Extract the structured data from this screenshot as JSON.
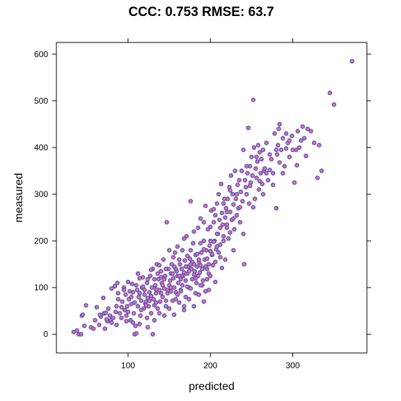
{
  "chart_data": {
    "type": "scatter",
    "title": "CCC: 0.753  RMSE: 63.7",
    "xlabel": "predicted",
    "ylabel": "measured",
    "xlim": [
      13,
      390
    ],
    "ylim": [
      -40,
      625
    ],
    "xticks": [
      100,
      200,
      300
    ],
    "yticks": [
      0,
      100,
      200,
      300,
      400,
      500,
      600
    ],
    "x_tick_labels": [
      "100",
      "200",
      "300"
    ],
    "y_tick_labels": [
      "0",
      "100",
      "200",
      "300",
      "400",
      "500",
      "600"
    ],
    "grid": false,
    "point_fill_color": "#ee6ca8",
    "point_edge_color": "#4a56b8",
    "points": [
      [
        34,
        5
      ],
      [
        38,
        8
      ],
      [
        40,
        0
      ],
      [
        43,
        0
      ],
      [
        44,
        40
      ],
      [
        45,
        42
      ],
      [
        47,
        18
      ],
      [
        49,
        62
      ],
      [
        55,
        15
      ],
      [
        58,
        12
      ],
      [
        60,
        30
      ],
      [
        62,
        58
      ],
      [
        65,
        20
      ],
      [
        67,
        38
      ],
      [
        70,
        78
      ],
      [
        71,
        45
      ],
      [
        72,
        12
      ],
      [
        73,
        46
      ],
      [
        75,
        28
      ],
      [
        76,
        55
      ],
      [
        78,
        40
      ],
      [
        79,
        30
      ],
      [
        80,
        98
      ],
      [
        82,
        35
      ],
      [
        84,
        103
      ],
      [
        85,
        48
      ],
      [
        86,
        60
      ],
      [
        87,
        110
      ],
      [
        88,
        88
      ],
      [
        90,
        45
      ],
      [
        92,
        58
      ],
      [
        93,
        70
      ],
      [
        95,
        100
      ],
      [
        97,
        85
      ],
      [
        98,
        40
      ],
      [
        99,
        60
      ],
      [
        100,
        112
      ],
      [
        101,
        75
      ],
      [
        103,
        30
      ],
      [
        104,
        65
      ],
      [
        106,
        90
      ],
      [
        107,
        45
      ],
      [
        108,
        0
      ],
      [
        109,
        18
      ],
      [
        110,
        2
      ],
      [
        111,
        95
      ],
      [
        112,
        60
      ],
      [
        113,
        80
      ],
      [
        114,
        120
      ],
      [
        115,
        40
      ],
      [
        116,
        72
      ],
      [
        117,
        100
      ],
      [
        118,
        122
      ],
      [
        119,
        55
      ],
      [
        120,
        85
      ],
      [
        121,
        66
      ],
      [
        122,
        70
      ],
      [
        123,
        35
      ],
      [
        123,
        110
      ],
      [
        124,
        78
      ],
      [
        125,
        60
      ],
      [
        126,
        90
      ],
      [
        127,
        125
      ],
      [
        128,
        45
      ],
      [
        129,
        100
      ],
      [
        130,
        0
      ],
      [
        130,
        140
      ],
      [
        131,
        75
      ],
      [
        132,
        62
      ],
      [
        133,
        105
      ],
      [
        134,
        88
      ],
      [
        135,
        150
      ],
      [
        136,
        55
      ],
      [
        137,
        118
      ],
      [
        138,
        95
      ],
      [
        139,
        70
      ],
      [
        140,
        135
      ],
      [
        141,
        110
      ],
      [
        142,
        80
      ],
      [
        143,
        160
      ],
      [
        144,
        98
      ],
      [
        145,
        125
      ],
      [
        146,
        60
      ],
      [
        147,
        240
      ],
      [
        148,
        88
      ],
      [
        149,
        140
      ],
      [
        150,
        105
      ],
      [
        151,
        115
      ],
      [
        152,
        130
      ],
      [
        153,
        150
      ],
      [
        154,
        72
      ],
      [
        155,
        120
      ],
      [
        156,
        100
      ],
      [
        157,
        175
      ],
      [
        158,
        90
      ],
      [
        159,
        135
      ],
      [
        160,
        125
      ],
      [
        161,
        110
      ],
      [
        162,
        160
      ],
      [
        163,
        150
      ],
      [
        164,
        95
      ],
      [
        165,
        140
      ],
      [
        166,
        180
      ],
      [
        167,
        125
      ],
      [
        168,
        60
      ],
      [
        169,
        158
      ],
      [
        170,
        115
      ],
      [
        171,
        210
      ],
      [
        172,
        130
      ],
      [
        173,
        145
      ],
      [
        174,
        100
      ],
      [
        175,
        162
      ],
      [
        176,
        285
      ],
      [
        177,
        140
      ],
      [
        178,
        118
      ],
      [
        179,
        195
      ],
      [
        180,
        150
      ],
      [
        181,
        135
      ],
      [
        182,
        170
      ],
      [
        183,
        110
      ],
      [
        184,
        145
      ],
      [
        185,
        228
      ],
      [
        186,
        155
      ],
      [
        187,
        132
      ],
      [
        188,
        248
      ],
      [
        189,
        175
      ],
      [
        190,
        140
      ],
      [
        191,
        115
      ],
      [
        192,
        200
      ],
      [
        193,
        160
      ],
      [
        194,
        275
      ],
      [
        195,
        180
      ],
      [
        196,
        140
      ],
      [
        197,
        225
      ],
      [
        198,
        150
      ],
      [
        199,
        190
      ],
      [
        200,
        230
      ],
      [
        201,
        265
      ],
      [
        202,
        170
      ],
      [
        203,
        148
      ],
      [
        204,
        240
      ],
      [
        205,
        200
      ],
      [
        206,
        255
      ],
      [
        207,
        182
      ],
      [
        208,
        280
      ],
      [
        209,
        215
      ],
      [
        210,
        300
      ],
      [
        211,
        245
      ],
      [
        212,
        192
      ],
      [
        213,
        322
      ],
      [
        214,
        260
      ],
      [
        215,
        235
      ],
      [
        216,
        210
      ],
      [
        217,
        290
      ],
      [
        218,
        250
      ],
      [
        219,
        270
      ],
      [
        220,
        235
      ],
      [
        221,
        290
      ],
      [
        222,
        205
      ],
      [
        223,
        315
      ],
      [
        224,
        262
      ],
      [
        225,
        340
      ],
      [
        226,
        245
      ],
      [
        227,
        300
      ],
      [
        228,
        278
      ],
      [
        229,
        225
      ],
      [
        230,
        350
      ],
      [
        231,
        290
      ],
      [
        232,
        255
      ],
      [
        233,
        320
      ],
      [
        234,
        270
      ],
      [
        235,
        330
      ],
      [
        236,
        240
      ],
      [
        237,
        305
      ],
      [
        238,
        350
      ],
      [
        239,
        285
      ],
      [
        240,
        395
      ],
      [
        241,
        150
      ],
      [
        242,
        330
      ],
      [
        243,
        315
      ],
      [
        244,
        300
      ],
      [
        245,
        345
      ],
      [
        246,
        442
      ],
      [
        247,
        280
      ],
      [
        248,
        360
      ],
      [
        249,
        325
      ],
      [
        250,
        380
      ],
      [
        251,
        340
      ],
      [
        252,
        502
      ],
      [
        253,
        400
      ],
      [
        254,
        290
      ],
      [
        255,
        355
      ],
      [
        256,
        335
      ],
      [
        257,
        370
      ],
      [
        258,
        405
      ],
      [
        259,
        310
      ],
      [
        260,
        390
      ],
      [
        261,
        345
      ],
      [
        262,
        375
      ],
      [
        263,
        322
      ],
      [
        264,
        395
      ],
      [
        265,
        350
      ],
      [
        266,
        355
      ],
      [
        268,
        410
      ],
      [
        270,
        330
      ],
      [
        272,
        385
      ],
      [
        274,
        375
      ],
      [
        276,
        345
      ],
      [
        278,
        430
      ],
      [
        280,
        270
      ],
      [
        281,
        385
      ],
      [
        282,
        405
      ],
      [
        283,
        440
      ],
      [
        284,
        450
      ],
      [
        286,
        395
      ],
      [
        288,
        420
      ],
      [
        290,
        360
      ],
      [
        292,
        430
      ],
      [
        294,
        410
      ],
      [
        296,
        380
      ],
      [
        299,
        425
      ],
      [
        302,
        325
      ],
      [
        304,
        395
      ],
      [
        306,
        435
      ],
      [
        308,
        400
      ],
      [
        312,
        445
      ],
      [
        314,
        420
      ],
      [
        318,
        440
      ],
      [
        322,
        435
      ],
      [
        326,
        410
      ],
      [
        330,
        335
      ],
      [
        332,
        405
      ],
      [
        335,
        350
      ],
      [
        345,
        517
      ],
      [
        350,
        492
      ],
      [
        372,
        585
      ],
      [
        80,
        25
      ],
      [
        95,
        95
      ],
      [
        105,
        108
      ],
      [
        112,
        130
      ],
      [
        118,
        102
      ],
      [
        126,
        72
      ],
      [
        132,
        118
      ],
      [
        138,
        148
      ],
      [
        144,
        118
      ],
      [
        150,
        180
      ],
      [
        155,
        165
      ],
      [
        160,
        188
      ],
      [
        165,
        125
      ],
      [
        168,
        205
      ],
      [
        172,
        102
      ],
      [
        176,
        180
      ],
      [
        180,
        220
      ],
      [
        185,
        125
      ],
      [
        188,
        195
      ],
      [
        192,
        240
      ],
      [
        196,
        118
      ],
      [
        200,
        200
      ],
      [
        204,
        268
      ],
      [
        208,
        215
      ],
      [
        212,
        165
      ],
      [
        216,
        280
      ],
      [
        220,
        228
      ],
      [
        224,
        308
      ],
      [
        228,
        180
      ],
      [
        232,
        300
      ],
      [
        236,
        272
      ],
      [
        240,
        215
      ],
      [
        244,
        360
      ],
      [
        248,
        318
      ],
      [
        252,
        272
      ],
      [
        256,
        380
      ],
      [
        260,
        328
      ],
      [
        264,
        300
      ],
      [
        268,
        345
      ],
      [
        272,
        352
      ],
      [
        276,
        320
      ],
      [
        280,
        395
      ],
      [
        284,
        368
      ],
      [
        288,
        345
      ],
      [
        292,
        398
      ],
      [
        296,
        415
      ],
      [
        300,
        395
      ],
      [
        305,
        362
      ],
      [
        310,
        415
      ],
      [
        316,
        382
      ],
      [
        136,
        130
      ],
      [
        142,
        105
      ],
      [
        148,
        95
      ],
      [
        154,
        130
      ],
      [
        158,
        140
      ],
      [
        162,
        125
      ],
      [
        166,
        105
      ],
      [
        170,
        145
      ],
      [
        174,
        135
      ],
      [
        178,
        155
      ],
      [
        182,
        120
      ],
      [
        186,
        160
      ],
      [
        190,
        105
      ],
      [
        194,
        145
      ],
      [
        198,
        130
      ],
      [
        202,
        172
      ],
      [
        206,
        155
      ],
      [
        210,
        175
      ],
      [
        214,
        142
      ],
      [
        218,
        160
      ],
      [
        100,
        48
      ],
      [
        104,
        80
      ],
      [
        108,
        68
      ],
      [
        114,
        88
      ],
      [
        120,
        95
      ],
      [
        124,
        118
      ],
      [
        128,
        138
      ],
      [
        134,
        96
      ],
      [
        140,
        122
      ],
      [
        146,
        140
      ],
      [
        152,
        100
      ],
      [
        156,
        145
      ],
      [
        160,
        85
      ],
      [
        164,
        118
      ],
      [
        168,
        132
      ],
      [
        172,
        168
      ],
      [
        176,
        150
      ],
      [
        180,
        128
      ],
      [
        184,
        172
      ],
      [
        188,
        148
      ],
      [
        192,
        182
      ],
      [
        196,
        162
      ],
      [
        200,
        178
      ],
      [
        204,
        198
      ],
      [
        208,
        188
      ],
      [
        212,
        228
      ],
      [
        216,
        200
      ],
      [
        220,
        262
      ],
      [
        224,
        218
      ],
      [
        228,
        248
      ],
      [
        88,
        75
      ],
      [
        96,
        52
      ],
      [
        102,
        92
      ],
      [
        110,
        105
      ],
      [
        116,
        52
      ],
      [
        122,
        62
      ],
      [
        128,
        82
      ],
      [
        134,
        68
      ],
      [
        140,
        88
      ],
      [
        146,
        72
      ],
      [
        152,
        92
      ],
      [
        158,
        75
      ],
      [
        164,
        92
      ],
      [
        170,
        80
      ],
      [
        176,
        98
      ],
      [
        182,
        88
      ],
      [
        188,
        105
      ],
      [
        194,
        92
      ],
      [
        200,
        125
      ],
      [
        206,
        112
      ],
      [
        66,
        42
      ],
      [
        74,
        32
      ],
      [
        86,
        20
      ],
      [
        92,
        35
      ],
      [
        98,
        28
      ],
      [
        106,
        25
      ],
      [
        114,
        22
      ],
      [
        124,
        15
      ],
      [
        132,
        30
      ],
      [
        138,
        45
      ],
      [
        144,
        40
      ],
      [
        150,
        55
      ],
      [
        156,
        42
      ],
      [
        162,
        68
      ],
      [
        168,
        52
      ],
      [
        174,
        75
      ],
      [
        180,
        60
      ],
      [
        186,
        85
      ],
      [
        192,
        70
      ],
      [
        198,
        95
      ]
    ]
  }
}
